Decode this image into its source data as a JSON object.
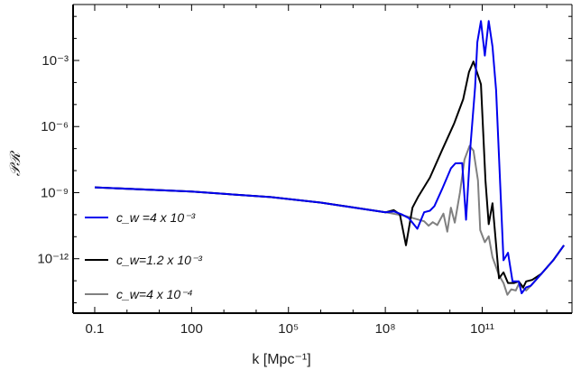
{
  "chart_data": {
    "type": "line",
    "title": "",
    "xlabel": "k [Mpc⁻¹]",
    "ylabel": "𝒫ℛ",
    "xscale": "log",
    "yscale": "log",
    "xlim_log10": [
      -1.67,
      13.78
    ],
    "ylim_log10": [
      -14.47,
      -0.46
    ],
    "grid": false,
    "legend_position": "left",
    "x_ticks": [
      {
        "log10": -1,
        "label": "0.1"
      },
      {
        "log10": 2,
        "label": "100"
      },
      {
        "log10": 5,
        "label": "10⁵"
      },
      {
        "log10": 8,
        "label": "10⁸"
      },
      {
        "log10": 11,
        "label": "10¹¹"
      }
    ],
    "y_ticks": [
      {
        "log10": -3,
        "label": "10⁻³"
      },
      {
        "log10": -6,
        "label": "10⁻⁶"
      },
      {
        "log10": -9,
        "label": "10⁻⁹"
      },
      {
        "log10": -12,
        "label": "10⁻¹²"
      }
    ],
    "series": [
      {
        "name": "c_w =4 x 10⁻³",
        "color": "#0000ee",
        "points_log10": [
          [
            -1,
            -8.76
          ],
          [
            2,
            -8.95
          ],
          [
            4.45,
            -9.2
          ],
          [
            6,
            -9.45
          ],
          [
            8.0,
            -9.89
          ],
          [
            8.26,
            -9.85
          ],
          [
            8.5,
            -9.98
          ],
          [
            8.73,
            -10.16
          ],
          [
            8.99,
            -10.64
          ],
          [
            9.2,
            -9.89
          ],
          [
            9.38,
            -9.82
          ],
          [
            9.52,
            -9.61
          ],
          [
            9.75,
            -8.86
          ],
          [
            10.03,
            -7.9
          ],
          [
            10.17,
            -7.67
          ],
          [
            10.38,
            -7.66
          ],
          [
            10.5,
            -10.23
          ],
          [
            10.64,
            -6.81
          ],
          [
            10.78,
            -4.22
          ],
          [
            10.85,
            -2.17
          ],
          [
            10.96,
            -1.21
          ],
          [
            11.08,
            -2.78
          ],
          [
            11.2,
            -1.21
          ],
          [
            11.32,
            -2.37
          ],
          [
            11.43,
            -4.35
          ],
          [
            11.66,
            -12.07
          ],
          [
            11.8,
            -11.73
          ],
          [
            11.94,
            -13.03
          ],
          [
            12.13,
            -13.03
          ],
          [
            12.22,
            -13.57
          ],
          [
            12.36,
            -13.3
          ],
          [
            12.5,
            -13.23
          ],
          [
            12.83,
            -12.69
          ],
          [
            13.2,
            -12.07
          ],
          [
            13.53,
            -11.39
          ]
        ]
      },
      {
        "name": "c_w=1.2 x 10⁻³",
        "color": "#000000",
        "points_log10": [
          [
            -1,
            -8.76
          ],
          [
            2,
            -8.95
          ],
          [
            4.45,
            -9.2
          ],
          [
            6,
            -9.45
          ],
          [
            8.01,
            -9.89
          ],
          [
            8.26,
            -9.79
          ],
          [
            8.45,
            -9.98
          ],
          [
            8.64,
            -11.39
          ],
          [
            8.84,
            -9.68
          ],
          [
            9.01,
            -9.2
          ],
          [
            9.38,
            -8.32
          ],
          [
            9.75,
            -7.09
          ],
          [
            10.13,
            -5.86
          ],
          [
            10.41,
            -4.76
          ],
          [
            10.59,
            -3.53
          ],
          [
            10.73,
            -3.05
          ],
          [
            10.96,
            -4.08
          ],
          [
            11.1,
            -8.45
          ],
          [
            11.2,
            -10.43
          ],
          [
            11.32,
            -9.48
          ],
          [
            11.52,
            -12.89
          ],
          [
            11.66,
            -12.62
          ],
          [
            11.8,
            -13.1
          ],
          [
            11.99,
            -13.1
          ],
          [
            12.13,
            -13.03
          ],
          [
            12.27,
            -13.3
          ],
          [
            12.36,
            -13.03
          ],
          [
            12.55,
            -12.96
          ],
          [
            12.83,
            -12.69
          ],
          [
            13.2,
            -12.07
          ],
          [
            13.53,
            -11.39
          ]
        ]
      },
      {
        "name": "c_w=4 x 10⁻⁴",
        "color": "#808080",
        "points_log10": [
          [
            -1,
            -8.76
          ],
          [
            2,
            -8.95
          ],
          [
            4.45,
            -9.2
          ],
          [
            6,
            -9.45
          ],
          [
            8.0,
            -9.89
          ],
          [
            8.6,
            -10.05
          ],
          [
            9.2,
            -10.3
          ],
          [
            9.34,
            -10.5
          ],
          [
            9.47,
            -10.34
          ],
          [
            9.61,
            -10.47
          ],
          [
            9.8,
            -9.95
          ],
          [
            9.92,
            -10.77
          ],
          [
            10.03,
            -9.68
          ],
          [
            10.15,
            -10.36
          ],
          [
            10.31,
            -9.0
          ],
          [
            10.45,
            -7.5
          ],
          [
            10.61,
            -6.88
          ],
          [
            10.73,
            -7.09
          ],
          [
            10.87,
            -8.45
          ],
          [
            10.94,
            -10.7
          ],
          [
            11.08,
            -11.25
          ],
          [
            11.2,
            -10.98
          ],
          [
            11.32,
            -11.93
          ],
          [
            11.52,
            -12.75
          ],
          [
            11.66,
            -13.1
          ],
          [
            11.78,
            -13.64
          ],
          [
            11.9,
            -13.39
          ],
          [
            12.04,
            -13.44
          ],
          [
            12.13,
            -13.16
          ],
          [
            12.36,
            -13.44
          ],
          [
            12.55,
            -13.16
          ],
          [
            12.83,
            -12.69
          ],
          [
            13.2,
            -12.07
          ],
          [
            13.53,
            -11.39
          ]
        ]
      }
    ]
  }
}
